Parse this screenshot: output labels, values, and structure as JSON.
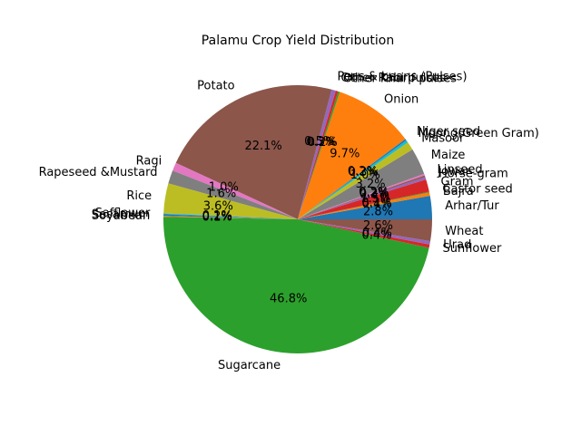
{
  "chart_data": {
    "type": "pie",
    "title": "Palamu Crop Yield Distribution",
    "start_angle_deg": 0,
    "direction": "counterclockwise",
    "autopct_format": "%1.1f%%",
    "labels": [
      "Arhar/Tur",
      "Bajra",
      "Castor seed",
      "Gram",
      "Horse-gram",
      "Jowar",
      "Linseed",
      "Maize",
      "Masoor",
      "Moong(Green Gram)",
      "Niger seed",
      "Onion",
      "Other Kharif pulses",
      "Other Rabi pulses",
      "Peas & beans (Pulses)",
      "Potato",
      "Ragi",
      "Rapeseed &Mustard",
      "Rice",
      "Safflower",
      "Sesamum",
      "Soyabean",
      "Sugarcane",
      "Sunflower",
      "Urad",
      "Wheat"
    ],
    "values": [
      2.8,
      0.4,
      0.1,
      1.5,
      0.3,
      0.2,
      0.2,
      3.2,
      1.0,
      0.3,
      0.2,
      9.7,
      0.2,
      0.3,
      0.5,
      22.1,
      1.0,
      1.6,
      3.6,
      0.1,
      0.2,
      0.1,
      46.8,
      0.4,
      0.4,
      2.6
    ],
    "pct_labels": [
      "2.8%",
      "0.4%",
      "0.1%",
      "1.5%",
      "0.3%",
      "0.2%",
      "0.2%",
      "3.2%",
      "1.0%",
      "0.3%",
      "0.2%",
      "9.7%",
      "0.2%",
      "0.3%",
      "0.5%",
      "22.1%",
      "1.0%",
      "1.6%",
      "3.6%",
      "0.1%",
      "0.2%",
      "0.1%",
      "46.8%",
      "0.4%",
      "0.4%",
      "2.6%"
    ],
    "colors": [
      "#1f77b4",
      "#ff7f0e",
      "#2ca02c",
      "#d62728",
      "#9467bd",
      "#8c564b",
      "#e377c2",
      "#7f7f7f",
      "#bcbd22",
      "#17becf"
    ]
  }
}
